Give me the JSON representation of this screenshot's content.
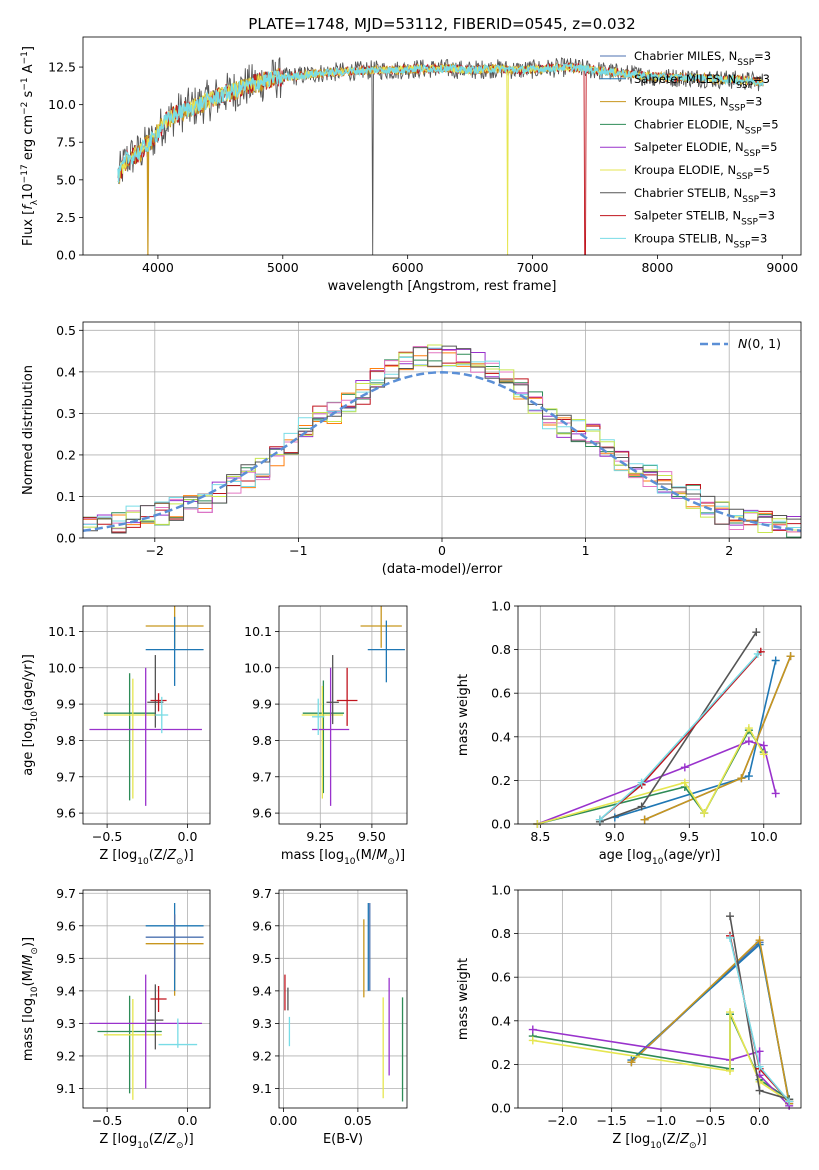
{
  "colors": {
    "Chabrier MILES": "#4c72b0",
    "Salpeter MILES": "#1f77b4",
    "Kroupa MILES": "#c8961e",
    "Chabrier ELODIE": "#2e8b57",
    "Salpeter ELODIE": "#9932cc",
    "Kroupa ELODIE": "#e6e650",
    "Chabrier STELIB": "#555555",
    "Salpeter STELIB": "#c0141e",
    "Kroupa STELIB": "#78dce6",
    "normal": "#5b8fd6"
  },
  "chart_data": [
    {
      "id": "spectrum",
      "type": "line",
      "title": "PLATE=1748, MJD=53112, FIBERID=0545, z=0.032",
      "xlabel": "wavelength [Angstrom, rest frame]",
      "ylabel": "Flux [f_λ10^-17 erg cm^-2 s^-1 A^-1]",
      "xlim": [
        3400,
        9150
      ],
      "ylim": [
        0,
        14.5
      ],
      "xticks": [
        4000,
        5000,
        6000,
        7000,
        8000,
        9000
      ],
      "yticks": [
        0.0,
        2.5,
        5.0,
        7.5,
        10.0,
        12.5
      ],
      "grid": false,
      "legend": "top-right",
      "legend_entries": [
        "Chabrier MILES, N_SSP=3",
        "Salpeter MILES, N_SSP=3",
        "Kroupa MILES, N_SSP=3",
        "Chabrier ELODIE, N_SSP=5",
        "Salpeter ELODIE, N_SSP=5",
        "Kroupa ELODIE, N_SSP=5",
        "Chabrier STELIB, N_SSP=3",
        "Salpeter STELIB, N_SSP=3",
        "Kroupa STELIB, N_SSP=3"
      ],
      "continuum": {
        "x": [
          3680,
          3750,
          3850,
          3950,
          4050,
          4150,
          4300,
          4500,
          4700,
          4900,
          5100,
          5300,
          5500,
          5700,
          5900,
          6100,
          6300,
          6500,
          6700,
          6900,
          7100,
          7300,
          7500,
          7700,
          7900,
          8100,
          8300,
          8500,
          8700,
          8850
        ],
        "y": [
          5.2,
          6.4,
          6.8,
          7.6,
          8.8,
          9.4,
          9.9,
          10.6,
          11.2,
          11.7,
          11.9,
          12.1,
          12.2,
          12.3,
          12.3,
          12.4,
          12.4,
          12.3,
          12.4,
          12.3,
          12.4,
          12.5,
          12.3,
          12.1,
          11.9,
          11.8,
          11.8,
          11.7,
          11.6,
          11.5
        ]
      },
      "dips": [
        {
          "x": 3920,
          "y": 0.0,
          "series": "Kroupa MILES"
        },
        {
          "x": 5720,
          "y": 0.0,
          "series": "Chabrier STELIB"
        },
        {
          "x": 6800,
          "y": 0.0,
          "series": "Kroupa ELODIE"
        },
        {
          "x": 7420,
          "y": 0.0,
          "series": "Salpeter STELIB"
        }
      ]
    },
    {
      "id": "residuals",
      "type": "line",
      "xlabel": "(data-model)/error",
      "ylabel": "Normed distribution",
      "xlim": [
        -2.5,
        2.5
      ],
      "ylim": [
        0,
        0.52
      ],
      "xticks": [
        -2,
        -1,
        0,
        1,
        2
      ],
      "yticks": [
        0.0,
        0.1,
        0.2,
        0.3,
        0.4,
        0.5
      ],
      "grid": true,
      "legend": "top-right",
      "legend_entries": [
        "N(0,1)"
      ],
      "histogram_bins": [
        -2.5,
        -2.4,
        -2.3,
        -2.2,
        -2.1,
        -2.0,
        -1.9,
        -1.8,
        -1.7,
        -1.6,
        -1.5,
        -1.4,
        -1.3,
        -1.2,
        -1.1,
        -1.0,
        -0.9,
        -0.8,
        -0.7,
        -0.6,
        -0.5,
        -0.4,
        -0.3,
        -0.2,
        -0.1,
        0.0,
        0.1,
        0.2,
        0.3,
        0.4,
        0.5,
        0.6,
        0.7,
        0.8,
        0.9,
        1.0,
        1.1,
        1.2,
        1.3,
        1.4,
        1.5,
        1.6,
        1.7,
        1.8,
        1.9,
        2.0,
        2.1,
        2.2,
        2.3,
        2.4,
        2.5
      ],
      "histogram_values": [
        0.03,
        0.03,
        0.04,
        0.05,
        0.05,
        0.06,
        0.07,
        0.08,
        0.09,
        0.11,
        0.13,
        0.15,
        0.17,
        0.2,
        0.23,
        0.26,
        0.29,
        0.3,
        0.33,
        0.35,
        0.38,
        0.41,
        0.43,
        0.44,
        0.44,
        0.44,
        0.43,
        0.42,
        0.4,
        0.38,
        0.36,
        0.33,
        0.29,
        0.27,
        0.26,
        0.25,
        0.21,
        0.18,
        0.17,
        0.15,
        0.13,
        0.11,
        0.1,
        0.08,
        0.06,
        0.05,
        0.04,
        0.04,
        0.03,
        0.03
      ]
    },
    {
      "id": "age-vs-Z",
      "type": "scatter",
      "xlabel": "Z [log10(Z/Z⊙)]",
      "ylabel": "age [log10(age/yr)]",
      "xlim": [
        -0.65,
        0.14
      ],
      "ylim": [
        9.57,
        10.17
      ],
      "xticks": [
        -0.5,
        0.0
      ],
      "xtick_labels": [
        "−0.5",
        "0.0"
      ],
      "yticks": [
        9.6,
        9.7,
        9.8,
        9.9,
        10.0,
        10.1
      ],
      "grid": true,
      "points": [
        {
          "series": "Kroupa MILES",
          "x": -0.08,
          "y": 10.115,
          "xerr": 0.18,
          "yerr": [
            0.06,
            0.06
          ]
        },
        {
          "series": "Salpeter MILES",
          "x": -0.08,
          "y": 10.05,
          "xerr": 0.18,
          "yerr": [
            0.1,
            0.09
          ]
        },
        {
          "series": "Chabrier ELODIE",
          "x": -0.36,
          "y": 9.875,
          "xerr": 0.16,
          "yerr": [
            0.24,
            0.11
          ]
        },
        {
          "series": "Kroupa ELODIE",
          "x": -0.34,
          "y": 9.87,
          "xerr": 0.18,
          "yerr": [
            0.23,
            0.1
          ]
        },
        {
          "series": "Salpeter ELODIE",
          "x": -0.26,
          "y": 9.83,
          "xerr": 0.35,
          "yerr": [
            0.21,
            0.17
          ]
        },
        {
          "series": "Chabrier STELIB",
          "x": -0.2,
          "y": 9.905,
          "xerr": 0.05,
          "yerr": [
            0.07,
            0.13
          ]
        },
        {
          "series": "Salpeter STELIB",
          "x": -0.18,
          "y": 9.91,
          "xerr": 0.05,
          "yerr": [
            0.03,
            0.02
          ]
        },
        {
          "series": "Kroupa STELIB",
          "x": -0.16,
          "y": 9.87,
          "xerr": 0.04,
          "yerr": [
            0.05,
            0.05
          ]
        }
      ]
    },
    {
      "id": "age-vs-mass",
      "type": "scatter",
      "xlabel": "mass [log10(M/M⊙)]",
      "ylabel": "",
      "xlim": [
        9.05,
        9.67
      ],
      "ylim": [
        9.57,
        10.17
      ],
      "xticks": [
        9.25,
        9.5
      ],
      "xtick_labels": [
        "9.25",
        "9.50"
      ],
      "yticks": [
        9.6,
        9.7,
        9.8,
        9.9,
        10.0,
        10.1
      ],
      "grid": true,
      "points": [
        {
          "series": "Kroupa MILES",
          "x": 9.545,
          "y": 10.115,
          "xerr": 0.1,
          "yerr": [
            0.06,
            0.06
          ]
        },
        {
          "series": "Salpeter MILES",
          "x": 9.57,
          "y": 10.05,
          "xerr": 0.09,
          "yerr": [
            0.09,
            0.08
          ]
        },
        {
          "series": "Chabrier ELODIE",
          "x": 9.265,
          "y": 9.875,
          "xerr": 0.1,
          "yerr": [
            0.22,
            0.09
          ]
        },
        {
          "series": "Kroupa ELODIE",
          "x": 9.26,
          "y": 9.87,
          "xerr": 0.1,
          "yerr": [
            0.23,
            0.08
          ]
        },
        {
          "series": "Salpeter ELODIE",
          "x": 9.3,
          "y": 9.83,
          "xerr": 0.09,
          "yerr": [
            0.21,
            0.17
          ]
        },
        {
          "series": "Chabrier STELIB",
          "x": 9.31,
          "y": 9.905,
          "xerr": 0.03,
          "yerr": [
            0.06,
            0.13
          ]
        },
        {
          "series": "Salpeter STELIB",
          "x": 9.38,
          "y": 9.91,
          "xerr": 0.05,
          "yerr": [
            0.07,
            0.09
          ]
        },
        {
          "series": "Kroupa STELIB",
          "x": 9.24,
          "y": 9.865,
          "xerr": 0.03,
          "yerr": [
            0.05,
            0.05
          ]
        }
      ]
    },
    {
      "id": "massweight-vs-age",
      "type": "line",
      "xlabel": "age [log10(age/yr)]",
      "ylabel": "mass weight",
      "xlim": [
        8.35,
        10.25
      ],
      "ylim": [
        0,
        1.0
      ],
      "xticks": [
        8.5,
        9.0,
        9.5,
        10.0
      ],
      "xtick_labels": [
        "8.5",
        "9.0",
        "9.5",
        "10.0"
      ],
      "yticks": [
        0.0,
        0.2,
        0.4,
        0.6,
        0.8,
        1.0
      ],
      "grid": true,
      "series": [
        {
          "series": "Chabrier MILES",
          "x": [
            9.2,
            9.85,
            10.18
          ],
          "y": [
            0.02,
            0.21,
            0.77
          ]
        },
        {
          "series": "Salpeter MILES",
          "x": [
            9.0,
            9.9,
            10.08
          ],
          "y": [
            0.03,
            0.22,
            0.75
          ]
        },
        {
          "series": "Kroupa MILES",
          "x": [
            9.2,
            9.85,
            10.18
          ],
          "y": [
            0.02,
            0.21,
            0.77
          ]
        },
        {
          "series": "Chabrier ELODIE",
          "x": [
            8.48,
            9.47,
            9.6,
            9.9,
            10.0
          ],
          "y": [
            0.0,
            0.17,
            0.05,
            0.43,
            0.33
          ]
        },
        {
          "series": "Salpeter ELODIE",
          "x": [
            8.48,
            9.47,
            9.9,
            10.0,
            10.08
          ],
          "y": [
            0.0,
            0.26,
            0.38,
            0.36,
            0.14
          ]
        },
        {
          "series": "Kroupa ELODIE",
          "x": [
            8.48,
            9.47,
            9.6,
            9.9,
            10.0
          ],
          "y": [
            0.0,
            0.19,
            0.05,
            0.44,
            0.32
          ]
        },
        {
          "series": "Chabrier STELIB",
          "x": [
            8.9,
            9.18,
            9.95
          ],
          "y": [
            0.01,
            0.08,
            0.88
          ]
        },
        {
          "series": "Salpeter STELIB",
          "x": [
            8.9,
            9.18,
            9.98
          ],
          "y": [
            0.02,
            0.18,
            0.79
          ]
        },
        {
          "series": "Kroupa STELIB",
          "x": [
            8.9,
            9.18,
            9.96
          ],
          "y": [
            0.02,
            0.19,
            0.78
          ]
        }
      ]
    },
    {
      "id": "mass-vs-Z",
      "type": "scatter",
      "xlabel": "Z [log10(Z/Z⊙)]",
      "ylabel": "mass [log10(M/M⊙)]",
      "xlim": [
        -0.65,
        0.14
      ],
      "ylim": [
        9.04,
        9.71
      ],
      "xticks": [
        -0.5,
        0.0
      ],
      "xtick_labels": [
        "−0.5",
        "0.0"
      ],
      "yticks": [
        9.1,
        9.2,
        9.3,
        9.4,
        9.5,
        9.6,
        9.7
      ],
      "grid": true,
      "points": [
        {
          "series": "Kroupa MILES",
          "x": -0.08,
          "y": 9.545,
          "xerr": 0.18,
          "yerr": [
            0.16,
            0.09
          ]
        },
        {
          "series": "Salpeter MILES",
          "x": -0.08,
          "y": 9.6,
          "xerr": 0.18,
          "yerr": [
            0.2,
            0.07
          ]
        },
        {
          "series": "Chabrier MILES",
          "x": -0.08,
          "y": 9.565,
          "xerr": 0.18,
          "yerr": [
            0.1,
            0.07
          ]
        },
        {
          "series": "Chabrier ELODIE",
          "x": -0.36,
          "y": 9.275,
          "xerr": 0.2,
          "yerr": [
            0.19,
            0.11
          ]
        },
        {
          "series": "Kroupa ELODIE",
          "x": -0.34,
          "y": 9.265,
          "xerr": 0.18,
          "yerr": [
            0.2,
            0.11
          ]
        },
        {
          "series": "Salpeter ELODIE",
          "x": -0.26,
          "y": 9.3,
          "xerr": 0.35,
          "yerr": [
            0.2,
            0.15
          ]
        },
        {
          "series": "Chabrier STELIB",
          "x": -0.2,
          "y": 9.31,
          "xerr": 0.05,
          "yerr": [
            0.09,
            0.11
          ]
        },
        {
          "series": "Salpeter STELIB",
          "x": -0.18,
          "y": 9.375,
          "xerr": 0.05,
          "yerr": [
            0.04,
            0.04
          ]
        },
        {
          "series": "Kroupa STELIB",
          "x": -0.06,
          "y": 9.235,
          "xerr": 0.12,
          "yerr": [
            0.01,
            0.08
          ]
        }
      ]
    },
    {
      "id": "mass-vs-EBV",
      "type": "scatter",
      "xlabel": "E(B-V)",
      "ylabel": "",
      "xlim": [
        -0.003,
        0.083
      ],
      "ylim": [
        9.04,
        9.71
      ],
      "xticks": [
        0.0,
        0.05
      ],
      "xtick_labels": [
        "0.00",
        "0.05"
      ],
      "yticks": [
        9.1,
        9.2,
        9.3,
        9.4,
        9.5,
        9.6,
        9.7
      ],
      "grid": true,
      "points": [
        {
          "series": "Salpeter STELIB",
          "x": 0.001,
          "y": 9.39,
          "yerr": [
            0.05,
            0.06
          ]
        },
        {
          "series": "Chabrier STELIB",
          "x": 0.003,
          "y": 9.38,
          "yerr": [
            0.04,
            0.03
          ]
        },
        {
          "series": "Kroupa STELIB",
          "x": 0.004,
          "y": 9.26,
          "yerr": [
            0.03,
            0.06
          ]
        },
        {
          "series": "Kroupa MILES",
          "x": 0.054,
          "y": 9.5,
          "yerr": [
            0.12,
            0.12
          ]
        },
        {
          "series": "Salpeter MILES",
          "x": 0.057,
          "y": 9.55,
          "yerr": [
            0.15,
            0.12
          ]
        },
        {
          "series": "Chabrier MILES",
          "x": 0.058,
          "y": 9.55,
          "yerr": [
            0.15,
            0.12
          ]
        },
        {
          "series": "Kroupa ELODIE",
          "x": 0.067,
          "y": 9.25,
          "yerr": [
            0.18,
            0.13
          ]
        },
        {
          "series": "Salpeter ELODIE",
          "x": 0.071,
          "y": 9.29,
          "yerr": [
            0.15,
            0.15
          ]
        },
        {
          "series": "Chabrier ELODIE",
          "x": 0.08,
          "y": 9.22,
          "yerr": [
            0.16,
            0.16
          ]
        }
      ]
    },
    {
      "id": "massweight-vs-Z",
      "type": "line",
      "xlabel": "Z [log10(Z/Z⊙)]",
      "ylabel": "mass weight",
      "xlim": [
        -2.45,
        0.42
      ],
      "ylim": [
        0,
        1.0
      ],
      "xticks": [
        -2.0,
        -1.5,
        -1.0,
        -0.5,
        0.0
      ],
      "xtick_labels": [
        "−2.0",
        "−1.5",
        "−1.0",
        "−0.5",
        "0.0"
      ],
      "yticks": [
        0.0,
        0.2,
        0.4,
        0.6,
        0.8,
        1.0
      ],
      "grid": true,
      "series": [
        {
          "series": "Chabrier MILES",
          "x": [
            -1.3,
            0.0,
            0.3
          ],
          "y": [
            0.21,
            0.76,
            0.02
          ]
        },
        {
          "series": "Salpeter MILES",
          "x": [
            -1.3,
            0.0,
            0.3
          ],
          "y": [
            0.22,
            0.75,
            0.03
          ]
        },
        {
          "series": "Kroupa MILES",
          "x": [
            -1.3,
            0.0,
            0.3
          ],
          "y": [
            0.21,
            0.77,
            0.02
          ]
        },
        {
          "series": "Chabrier ELODIE",
          "x": [
            -2.3,
            -0.3,
            -0.3,
            0.0,
            0.3
          ],
          "y": [
            0.33,
            0.18,
            0.43,
            0.13,
            0.04
          ]
        },
        {
          "series": "Salpeter ELODIE",
          "x": [
            -2.3,
            -0.3,
            0.0,
            0.0,
            0.3
          ],
          "y": [
            0.36,
            0.22,
            0.26,
            0.15,
            0.01
          ]
        },
        {
          "series": "Kroupa ELODIE",
          "x": [
            -2.3,
            -0.3,
            -0.3,
            0.0,
            0.3
          ],
          "y": [
            0.31,
            0.17,
            0.44,
            0.12,
            0.03
          ]
        },
        {
          "series": "Chabrier STELIB",
          "x": [
            -0.3,
            0.0,
            0.3
          ],
          "y": [
            0.88,
            0.08,
            0.04
          ]
        },
        {
          "series": "Salpeter STELIB",
          "x": [
            -0.3,
            0.0,
            0.3
          ],
          "y": [
            0.79,
            0.18,
            0.03
          ]
        },
        {
          "series": "Kroupa STELIB",
          "x": [
            -0.3,
            0.0,
            0.3
          ],
          "y": [
            0.78,
            0.19,
            0.03
          ]
        }
      ]
    }
  ]
}
